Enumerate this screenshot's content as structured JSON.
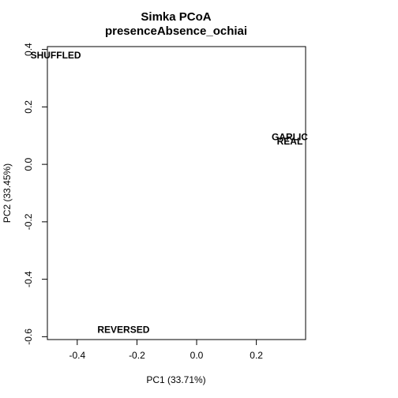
{
  "chart_data": {
    "type": "scatter",
    "title": "Simka PCoA",
    "subtitle": "presenceAbsence_ochiai",
    "xlabel": "PC1 (33.71%)",
    "ylabel": "PC2 (33.45%)",
    "xlim": [
      -0.5,
      0.365
    ],
    "ylim": [
      -0.61,
      0.41
    ],
    "xticks": [
      -0.4,
      -0.2,
      0.0,
      0.2
    ],
    "xtick_labels": [
      "-0.4",
      "-0.2",
      "0.0",
      "0.2"
    ],
    "yticks": [
      -0.6,
      -0.4,
      -0.2,
      0.0,
      0.2,
      0.4
    ],
    "ytick_labels": [
      "-0.6",
      "-0.4",
      "-0.2",
      "0.0",
      "0.2",
      "0.4"
    ],
    "grid": false,
    "points": [
      {
        "label": "SHUFFLED",
        "x": -0.472,
        "y": 0.38
      },
      {
        "label": "GARLIC",
        "x": 0.312,
        "y": 0.095
      },
      {
        "label": "REAL",
        "x": 0.312,
        "y": 0.08
      },
      {
        "label": "REVERSED",
        "x": -0.245,
        "y": -0.575
      }
    ]
  }
}
